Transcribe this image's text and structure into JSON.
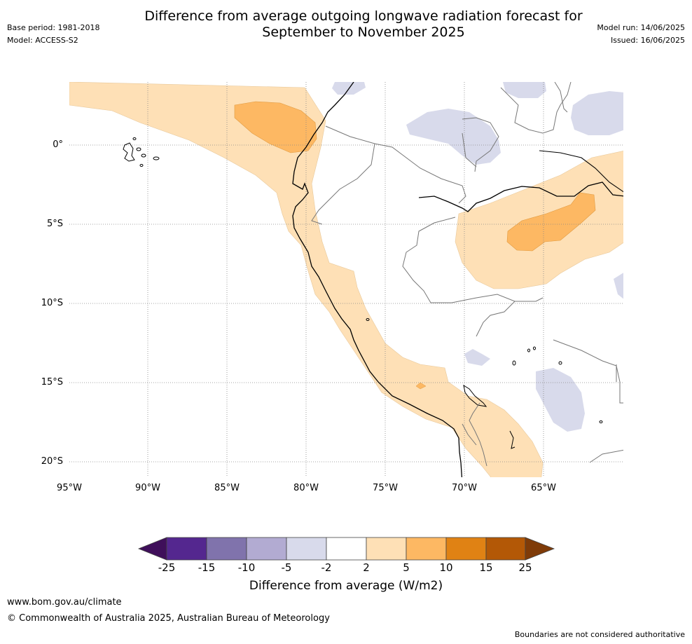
{
  "header": {
    "title_line1": "Difference from average outgoing longwave radiation forecast for",
    "title_line2": "September to November 2025",
    "base_period": "Base period: 1981-2018",
    "model": "Model: ACCESS-S2",
    "model_run": "Model run: 14/06/2025",
    "issued": "Issued: 16/06/2025"
  },
  "map": {
    "lat_labels": [
      "0°",
      "5°S",
      "10°S",
      "15°S",
      "20°S"
    ],
    "lon_labels": [
      "95°W",
      "90°W",
      "85°W",
      "80°W",
      "75°W",
      "70°W",
      "65°W"
    ],
    "gridlines": true
  },
  "colorbar": {
    "title": "Difference from average (W/m2)",
    "tick_labels": [
      "-25",
      "-15",
      "-10",
      "-5",
      "-2",
      "2",
      "5",
      "10",
      "15",
      "25"
    ],
    "colors": [
      "#3f0f5a",
      "#54278f",
      "#8073ac",
      "#b2abd2",
      "#d8daeb",
      "#ffffff",
      "#fee0b6",
      "#fdb863",
      "#e08214",
      "#b35806",
      "#7f3b08"
    ],
    "extend_both": true
  },
  "footer": {
    "website": "www.bom.gov.au/climate",
    "copyright": "© Commonwealth of Australia 2025, Australian Bureau of Meteorology",
    "disclaimer": "Boundaries are not considered authoritative"
  }
}
